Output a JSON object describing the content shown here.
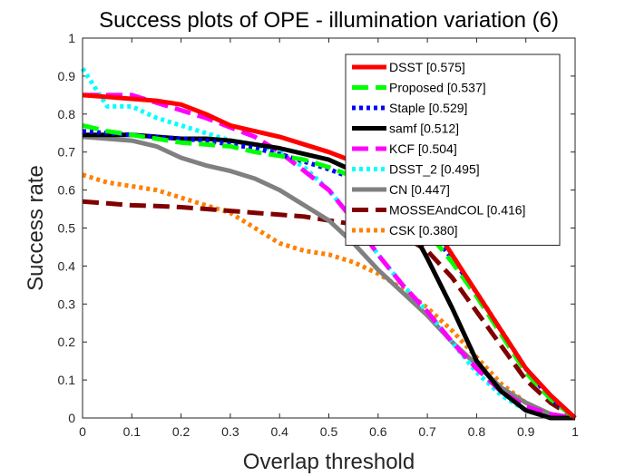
{
  "chart_data": {
    "type": "line",
    "title": "Success plots of OPE - illumination variation (6)",
    "xlabel": "Overlap threshold",
    "ylabel": "Success rate",
    "xlim": [
      0,
      1
    ],
    "ylim": [
      0,
      1
    ],
    "xticks": [
      "0",
      "0.1",
      "0.2",
      "0.3",
      "0.4",
      "0.5",
      "0.6",
      "0.7",
      "0.8",
      "0.9",
      "1"
    ],
    "yticks": [
      "0",
      "0.1",
      "0.2",
      "0.3",
      "0.4",
      "0.5",
      "0.6",
      "0.7",
      "0.8",
      "0.9",
      "1"
    ],
    "legend_position": "top-right",
    "series": [
      {
        "name": "DSST [0.575]",
        "color": "#ff0000",
        "style": "solid",
        "x": [
          0,
          0.05,
          0.1,
          0.15,
          0.2,
          0.25,
          0.3,
          0.35,
          0.4,
          0.45,
          0.5,
          0.55,
          0.6,
          0.65,
          0.7,
          0.75,
          0.8,
          0.85,
          0.9,
          0.95,
          1
        ],
        "y": [
          0.85,
          0.845,
          0.84,
          0.835,
          0.825,
          0.8,
          0.77,
          0.755,
          0.74,
          0.72,
          0.7,
          0.675,
          0.645,
          0.6,
          0.53,
          0.43,
          0.33,
          0.23,
          0.13,
          0.06,
          0.0
        ]
      },
      {
        "name": "Proposed [0.537]",
        "color": "#00ff00",
        "style": "dashed",
        "x": [
          0,
          0.05,
          0.1,
          0.15,
          0.2,
          0.25,
          0.3,
          0.35,
          0.4,
          0.45,
          0.5,
          0.55,
          0.6,
          0.65,
          0.7,
          0.75,
          0.8,
          0.85,
          0.9,
          0.95,
          1
        ],
        "y": [
          0.77,
          0.755,
          0.745,
          0.735,
          0.725,
          0.72,
          0.715,
          0.7,
          0.69,
          0.68,
          0.66,
          0.635,
          0.6,
          0.55,
          0.49,
          0.41,
          0.32,
          0.22,
          0.12,
          0.05,
          0.0
        ]
      },
      {
        "name": "Staple [0.529]",
        "color": "#0000ff",
        "style": "dotted",
        "x": [
          0,
          0.05,
          0.1,
          0.15,
          0.2,
          0.25,
          0.3,
          0.35,
          0.4,
          0.45,
          0.5,
          0.55,
          0.6,
          0.65,
          0.7,
          0.75,
          0.8,
          0.85,
          0.9,
          0.95,
          1
        ],
        "y": [
          0.755,
          0.75,
          0.745,
          0.74,
          0.735,
          0.73,
          0.72,
          0.71,
          0.695,
          0.675,
          0.655,
          0.63,
          0.6,
          0.56,
          0.5,
          0.42,
          0.33,
          0.23,
          0.13,
          0.05,
          0.0
        ]
      },
      {
        "name": "samf [0.512]",
        "color": "#000000",
        "style": "solid",
        "x": [
          0,
          0.05,
          0.1,
          0.15,
          0.2,
          0.25,
          0.3,
          0.35,
          0.4,
          0.45,
          0.5,
          0.55,
          0.6,
          0.65,
          0.7,
          0.75,
          0.8,
          0.85,
          0.9,
          0.95,
          1
        ],
        "y": [
          0.745,
          0.745,
          0.745,
          0.74,
          0.735,
          0.735,
          0.73,
          0.72,
          0.71,
          0.695,
          0.68,
          0.65,
          0.61,
          0.54,
          0.42,
          0.29,
          0.15,
          0.07,
          0.02,
          0.0,
          0.0
        ]
      },
      {
        "name": "KCF [0.504]",
        "color": "#ff00ff",
        "style": "dashed",
        "x": [
          0,
          0.05,
          0.1,
          0.15,
          0.2,
          0.25,
          0.3,
          0.35,
          0.4,
          0.45,
          0.5,
          0.55,
          0.6,
          0.65,
          0.7,
          0.75,
          0.8,
          0.85,
          0.9,
          0.95,
          1
        ],
        "y": [
          0.85,
          0.85,
          0.85,
          0.83,
          0.81,
          0.79,
          0.765,
          0.74,
          0.7,
          0.65,
          0.6,
          0.52,
          0.43,
          0.35,
          0.28,
          0.2,
          0.13,
          0.07,
          0.03,
          0.01,
          0.0
        ]
      },
      {
        "name": "DSST_2 [0.495]",
        "color": "#00ffff",
        "style": "dotted",
        "x": [
          0,
          0.02,
          0.05,
          0.1,
          0.15,
          0.2,
          0.25,
          0.3,
          0.35,
          0.4,
          0.45,
          0.5,
          0.55,
          0.6,
          0.65,
          0.7,
          0.75,
          0.8,
          0.85,
          0.9,
          0.95,
          1
        ],
        "y": [
          0.92,
          0.88,
          0.82,
          0.82,
          0.79,
          0.77,
          0.75,
          0.73,
          0.72,
          0.7,
          0.66,
          0.6,
          0.52,
          0.43,
          0.35,
          0.28,
          0.2,
          0.12,
          0.06,
          0.02,
          0.0,
          0.0
        ]
      },
      {
        "name": "CN [0.447]",
        "color": "#808080",
        "style": "solid",
        "x": [
          0,
          0.05,
          0.1,
          0.15,
          0.2,
          0.25,
          0.3,
          0.35,
          0.4,
          0.45,
          0.5,
          0.55,
          0.6,
          0.65,
          0.7,
          0.75,
          0.8,
          0.85,
          0.9,
          0.95,
          1
        ],
        "y": [
          0.74,
          0.735,
          0.73,
          0.715,
          0.685,
          0.665,
          0.65,
          0.63,
          0.6,
          0.56,
          0.52,
          0.46,
          0.39,
          0.33,
          0.27,
          0.2,
          0.14,
          0.08,
          0.04,
          0.01,
          0.0
        ]
      },
      {
        "name": "MOSSEAndCOL [0.416]",
        "color": "#800000",
        "style": "dashed",
        "x": [
          0,
          0.05,
          0.1,
          0.15,
          0.2,
          0.25,
          0.3,
          0.35,
          0.4,
          0.45,
          0.5,
          0.55,
          0.6,
          0.65,
          0.7,
          0.75,
          0.8,
          0.85,
          0.9,
          0.95,
          1
        ],
        "y": [
          0.57,
          0.565,
          0.56,
          0.558,
          0.555,
          0.55,
          0.545,
          0.54,
          0.535,
          0.53,
          0.52,
          0.51,
          0.5,
          0.48,
          0.44,
          0.37,
          0.28,
          0.19,
          0.1,
          0.04,
          0.0
        ]
      },
      {
        "name": "CSK [0.380]",
        "color": "#ff8000",
        "style": "dotted",
        "x": [
          0,
          0.05,
          0.1,
          0.15,
          0.2,
          0.25,
          0.3,
          0.35,
          0.4,
          0.45,
          0.5,
          0.55,
          0.6,
          0.65,
          0.7,
          0.75,
          0.8,
          0.85,
          0.9,
          0.95,
          1
        ],
        "y": [
          0.64,
          0.62,
          0.61,
          0.6,
          0.58,
          0.56,
          0.54,
          0.5,
          0.46,
          0.44,
          0.43,
          0.41,
          0.38,
          0.34,
          0.29,
          0.23,
          0.16,
          0.09,
          0.04,
          0.01,
          0.0
        ]
      }
    ]
  }
}
